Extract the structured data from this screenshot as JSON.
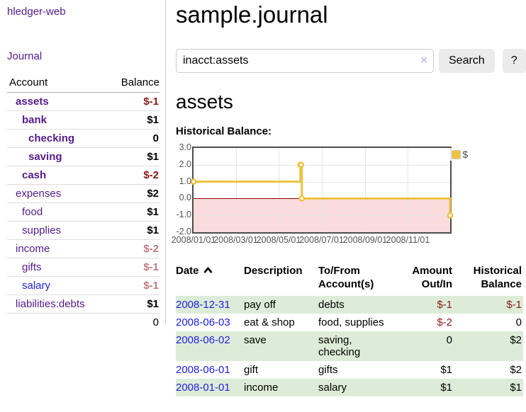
{
  "sidebar": {
    "app_title": "hledger-web",
    "journal_link": "Journal",
    "table": {
      "headers": [
        "Account",
        "Balance"
      ],
      "accounts": [
        {
          "name": "assets",
          "indent": 1,
          "bold": true,
          "balance": "$-1",
          "tone": "neg"
        },
        {
          "name": "bank",
          "indent": 2,
          "bold": true,
          "balance": "$1",
          "tone": ""
        },
        {
          "name": "checking",
          "indent": 3,
          "bold": true,
          "balance": "0",
          "tone": ""
        },
        {
          "name": "saving",
          "indent": 3,
          "bold": true,
          "balance": "$1",
          "tone": ""
        },
        {
          "name": "cash",
          "indent": 2,
          "bold": true,
          "balance": "$-2",
          "tone": "neg"
        },
        {
          "name": "expenses",
          "indent": 1,
          "bold": false,
          "balance": "$2",
          "tone": ""
        },
        {
          "name": "food",
          "indent": 2,
          "bold": false,
          "balance": "$1",
          "tone": ""
        },
        {
          "name": "supplies",
          "indent": 2,
          "bold": false,
          "balance": "$1",
          "tone": ""
        },
        {
          "name": "income",
          "indent": 1,
          "bold": false,
          "balance": "$-2",
          "tone": "muted"
        },
        {
          "name": "gifts",
          "indent": 2,
          "bold": false,
          "balance": "$-1",
          "tone": "muted"
        },
        {
          "name": "salary",
          "indent": 2,
          "bold": false,
          "balance": "$-1",
          "tone": "muted",
          "unvisited": true
        },
        {
          "name": "liabilities:debts",
          "indent": 1,
          "bold": false,
          "balance": "$1",
          "tone": ""
        }
      ],
      "total": "0"
    }
  },
  "main": {
    "title": "sample.journal",
    "search": {
      "value": "inacct:assets",
      "clear_glyph": "×",
      "search_label": "Search",
      "help_label": "?"
    },
    "account_heading": "assets"
  },
  "chart_data": {
    "type": "line",
    "title": "Historical Balance:",
    "step": true,
    "series": [
      {
        "name": "$",
        "color": "#edc240",
        "points": [
          [
            "2008-01-01",
            1
          ],
          [
            "2008-06-01",
            2
          ],
          [
            "2008-06-02",
            2
          ],
          [
            "2008-06-03",
            0
          ],
          [
            "2008-12-31",
            -1
          ]
        ]
      }
    ],
    "xlim": [
      "2008-01-01",
      "2008-12-31"
    ],
    "ylim": [
      -2,
      3
    ],
    "x_ticks": [
      "2008/01/01",
      "2008/03/01",
      "2008/05/01",
      "2008/07/01",
      "2008/09/01",
      "2008/11/01"
    ],
    "y_ticks": [
      "3.0",
      "2.0",
      "1.0",
      "0.0",
      "-1.0",
      "-2.0"
    ],
    "grid": true,
    "legend": {
      "label": "$",
      "position": "top-right",
      "swatch_color": "#edc240"
    },
    "negative_region_color": "#fbdcdc",
    "zero_line_color": "#8b0000"
  },
  "register": {
    "headers": [
      "Date",
      "Description",
      "To/From Account(s)",
      "Amount Out/In",
      "Historical Balance"
    ],
    "sort": {
      "column": "Date",
      "direction": "ascending",
      "icon": "chevron-up-icon"
    },
    "rows": [
      {
        "date": "2008-12-31",
        "description": "pay off",
        "accounts": "debts",
        "amount": "$-1",
        "amount_negative": true,
        "balance": "$-1",
        "balance_negative": true
      },
      {
        "date": "2008-06-03",
        "description": "eat & shop",
        "accounts": "food, supplies",
        "amount": "$-2",
        "amount_negative": true,
        "balance": "0",
        "balance_negative": false
      },
      {
        "date": "2008-06-02",
        "description": "save",
        "accounts": "saving, checking",
        "amount": "0",
        "amount_negative": false,
        "balance": "$2",
        "balance_negative": false
      },
      {
        "date": "2008-06-01",
        "description": "gift",
        "accounts": "gifts",
        "amount": "$1",
        "amount_negative": false,
        "balance": "$2",
        "balance_negative": false
      },
      {
        "date": "2008-01-01",
        "description": "income",
        "accounts": "salary",
        "amount": "$1",
        "amount_negative": false,
        "balance": "$1",
        "balance_negative": false
      }
    ]
  },
  "colors": {
    "visited_link_purple": "#551a8b",
    "link_blue": "#2222dd",
    "negative_red": "#8b1a1a",
    "muted_negative": "#c0797d",
    "row_highlight_green": "#dcecd8",
    "chart_line_gold": "#edc240",
    "chart_negative_zone_pink": "#fbdcdc",
    "chart_zero_line": "#8b0000",
    "button_gray": "#ebebeb"
  }
}
